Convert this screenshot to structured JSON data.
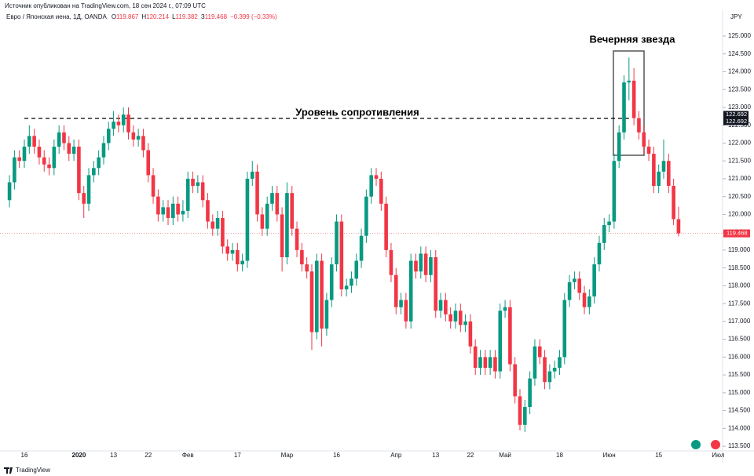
{
  "header": {
    "source": "Источник опубликован на TradingView.com, 18 сен 2024 г., 07:09 UTC",
    "symbol": "Евро / Японская иена, 1Д, OANDA",
    "ohlc_letters": [
      "О",
      "Н",
      "L",
      "З"
    ],
    "change": "−0.399 (−0.33%)",
    "currency": "JPY",
    "brand": "TradingView"
  },
  "chart_data": {
    "type": "candlestick",
    "up_color": "#089981",
    "down_color": "#f23645",
    "ylim": [
      113.37,
      125.62
    ],
    "yticks": [
      {
        "value": 113.5,
        "label": "113.500"
      },
      {
        "value": 114,
        "label": "114.000"
      },
      {
        "value": 114.5,
        "label": "114.500"
      },
      {
        "value": 115,
        "label": "115.000"
      },
      {
        "value": 115.5,
        "label": "115.500"
      },
      {
        "value": 116,
        "label": "116.000"
      },
      {
        "value": 116.5,
        "label": "116.500"
      },
      {
        "value": 117,
        "label": "117.000"
      },
      {
        "value": 117.5,
        "label": "117.500"
      },
      {
        "value": 118,
        "label": "118.000"
      },
      {
        "value": 118.5,
        "label": "118.500"
      },
      {
        "value": 119,
        "label": "119.000"
      },
      {
        "value": 119.5,
        "label": "119.500"
      },
      {
        "value": 120,
        "label": "120.000"
      },
      {
        "value": 120.5,
        "label": "120.500"
      },
      {
        "value": 121,
        "label": "121.000"
      },
      {
        "value": 121.5,
        "label": "121.500"
      },
      {
        "value": 122,
        "label": "122.000"
      },
      {
        "value": 122.5,
        "label": "122.500"
      },
      {
        "value": 123,
        "label": "123.000"
      },
      {
        "value": 123.5,
        "label": "123.500"
      },
      {
        "value": 124,
        "label": "124.000"
      },
      {
        "value": 124.5,
        "label": "124.500"
      },
      {
        "value": 125,
        "label": "125.000"
      }
    ],
    "categories": [
      null,
      null,
      null,
      "16",
      null,
      null,
      null,
      null,
      null,
      null,
      null,
      null,
      null,
      null,
      "2020",
      null,
      null,
      null,
      null,
      null,
      null,
      "13",
      null,
      null,
      null,
      null,
      null,
      null,
      "22",
      null,
      null,
      null,
      null,
      null,
      null,
      null,
      "Фев",
      null,
      null,
      null,
      null,
      null,
      null,
      null,
      null,
      null,
      "17",
      null,
      null,
      null,
      null,
      null,
      null,
      null,
      null,
      null,
      "Мар",
      null,
      null,
      null,
      null,
      null,
      null,
      null,
      null,
      null,
      "16",
      null,
      null,
      null,
      null,
      null,
      null,
      null,
      null,
      null,
      null,
      null,
      "Апр",
      null,
      null,
      null,
      null,
      null,
      null,
      null,
      "13",
      null,
      null,
      null,
      null,
      null,
      null,
      "22",
      null,
      null,
      null,
      null,
      null,
      null,
      "Май",
      null,
      null,
      null,
      null,
      null,
      null,
      null,
      null,
      null,
      null,
      "18",
      null,
      null,
      null,
      null,
      null,
      null,
      null,
      null,
      null,
      "Июн",
      null,
      null,
      null,
      null,
      null,
      null,
      null,
      null,
      null,
      "15",
      null,
      null,
      null,
      null,
      null,
      null,
      null,
      null,
      null,
      null,
      null,
      "Июл"
    ],
    "ohlc": [
      [
        120.4,
        121.1,
        120.2,
        120.9
      ],
      [
        120.9,
        121.8,
        120.7,
        121.6
      ],
      [
        121.6,
        121.8,
        121.3,
        121.5
      ],
      [
        121.5,
        122.1,
        121.3,
        121.9
      ],
      [
        121.9,
        122.5,
        121.7,
        122.2
      ],
      [
        122.2,
        122.4,
        121.7,
        121.9
      ],
      [
        121.9,
        122.1,
        121.4,
        121.6
      ],
      [
        121.6,
        121.8,
        121.2,
        121.4
      ],
      [
        121.4,
        121.6,
        121.1,
        121.3
      ],
      [
        121.3,
        122.1,
        121.1,
        121.9
      ],
      [
        121.9,
        122.5,
        121.7,
        122.3
      ],
      [
        122.3,
        122.5,
        121.8,
        122.0
      ],
      [
        122.0,
        122.2,
        121.5,
        121.7
      ],
      [
        121.7,
        122.1,
        121.5,
        121.9
      ],
      [
        121.9,
        122.1,
        120.4,
        120.6
      ],
      [
        120.6,
        120.8,
        119.9,
        120.3
      ],
      [
        120.3,
        121.3,
        120.1,
        121.1
      ],
      [
        121.1,
        121.5,
        120.9,
        121.3
      ],
      [
        121.3,
        121.8,
        121.1,
        121.6
      ],
      [
        121.6,
        122.2,
        121.4,
        122.0
      ],
      [
        122.0,
        122.6,
        121.8,
        122.4
      ],
      [
        122.4,
        122.9,
        122.2,
        122.6
      ],
      [
        122.6,
        122.8,
        122.3,
        122.5
      ],
      [
        122.5,
        123.0,
        122.3,
        122.8
      ],
      [
        122.8,
        123.0,
        122.1,
        122.3
      ],
      [
        122.3,
        122.5,
        121.9,
        122.1
      ],
      [
        122.1,
        122.4,
        121.9,
        122.2
      ],
      [
        122.2,
        122.4,
        121.6,
        121.8
      ],
      [
        121.8,
        122.0,
        120.9,
        121.1
      ],
      [
        121.1,
        121.3,
        120.3,
        120.5
      ],
      [
        120.5,
        120.7,
        119.8,
        120.0
      ],
      [
        120.0,
        120.4,
        119.8,
        120.2
      ],
      [
        120.2,
        120.4,
        119.7,
        119.9
      ],
      [
        119.9,
        120.5,
        119.7,
        120.3
      ],
      [
        120.3,
        120.5,
        119.8,
        120.0
      ],
      [
        120.0,
        120.4,
        119.8,
        120.1
      ],
      [
        120.1,
        121.2,
        119.9,
        121.0
      ],
      [
        121.0,
        121.2,
        120.6,
        120.8
      ],
      [
        120.8,
        121.1,
        120.6,
        120.9
      ],
      [
        120.9,
        121.1,
        120.2,
        120.4
      ],
      [
        120.4,
        120.6,
        119.6,
        119.8
      ],
      [
        119.8,
        120.0,
        119.4,
        119.6
      ],
      [
        119.6,
        120.1,
        119.4,
        119.9
      ],
      [
        119.9,
        120.1,
        118.9,
        119.1
      ],
      [
        119.1,
        119.3,
        118.7,
        118.9
      ],
      [
        118.9,
        119.2,
        118.7,
        119.0
      ],
      [
        119.0,
        119.2,
        118.4,
        118.6
      ],
      [
        118.6,
        118.9,
        118.4,
        118.7
      ],
      [
        118.7,
        121.2,
        118.5,
        121.0
      ],
      [
        121.0,
        121.5,
        120.8,
        121.2
      ],
      [
        121.2,
        121.4,
        119.8,
        120.0
      ],
      [
        120.0,
        120.2,
        119.4,
        119.6
      ],
      [
        119.6,
        120.5,
        119.4,
        120.3
      ],
      [
        120.3,
        120.8,
        120.1,
        120.6
      ],
      [
        120.6,
        120.8,
        119.8,
        120.0
      ],
      [
        120.0,
        120.2,
        118.4,
        118.8
      ],
      [
        118.8,
        120.9,
        118.6,
        120.6
      ],
      [
        120.6,
        120.8,
        119.4,
        119.6
      ],
      [
        119.6,
        119.8,
        118.8,
        119.0
      ],
      [
        119.0,
        119.2,
        118.4,
        118.6
      ],
      [
        118.6,
        118.8,
        118.2,
        118.4
      ],
      [
        118.4,
        118.6,
        116.2,
        116.7
      ],
      [
        116.7,
        118.9,
        116.5,
        118.7
      ],
      [
        118.7,
        118.9,
        116.3,
        116.8
      ],
      [
        116.8,
        117.8,
        116.6,
        117.6
      ],
      [
        117.6,
        118.8,
        117.4,
        118.6
      ],
      [
        118.6,
        120.0,
        118.4,
        119.8
      ],
      [
        119.8,
        120.0,
        117.7,
        117.9
      ],
      [
        117.9,
        118.2,
        117.7,
        118.0
      ],
      [
        118.0,
        118.4,
        117.8,
        118.2
      ],
      [
        118.2,
        118.9,
        118.0,
        118.7
      ],
      [
        118.7,
        119.6,
        118.5,
        119.4
      ],
      [
        119.4,
        120.7,
        119.2,
        120.5
      ],
      [
        120.5,
        121.3,
        120.3,
        121.1
      ],
      [
        121.1,
        121.3,
        120.8,
        121.0
      ],
      [
        121.0,
        121.2,
        120.1,
        120.3
      ],
      [
        120.3,
        120.5,
        118.8,
        119.0
      ],
      [
        119.0,
        119.2,
        118.1,
        118.3
      ],
      [
        118.3,
        118.5,
        117.2,
        117.4
      ],
      [
        117.4,
        117.8,
        117.2,
        117.6
      ],
      [
        117.6,
        117.8,
        116.8,
        117.0
      ],
      [
        117.0,
        118.9,
        116.8,
        118.7
      ],
      [
        118.7,
        118.9,
        118.2,
        118.4
      ],
      [
        118.4,
        119.1,
        118.2,
        118.9
      ],
      [
        118.9,
        119.1,
        118.1,
        118.3
      ],
      [
        118.3,
        119.0,
        118.1,
        118.8
      ],
      [
        118.8,
        119.0,
        117.1,
        117.3
      ],
      [
        117.3,
        117.8,
        117.1,
        117.6
      ],
      [
        117.6,
        117.8,
        117.0,
        117.2
      ],
      [
        117.2,
        117.4,
        116.8,
        117.0
      ],
      [
        117.0,
        117.5,
        116.8,
        117.3
      ],
      [
        117.3,
        117.5,
        116.7,
        116.9
      ],
      [
        116.9,
        117.2,
        116.7,
        117.0
      ],
      [
        117.0,
        117.2,
        116.1,
        116.3
      ],
      [
        116.3,
        116.5,
        115.5,
        115.7
      ],
      [
        115.7,
        116.2,
        115.5,
        116.0
      ],
      [
        116.0,
        116.2,
        115.5,
        115.7
      ],
      [
        115.7,
        116.2,
        115.5,
        116.0
      ],
      [
        116.0,
        116.2,
        115.4,
        115.6
      ],
      [
        115.6,
        117.5,
        115.4,
        117.3
      ],
      [
        117.3,
        117.6,
        117.1,
        117.4
      ],
      [
        117.4,
        117.6,
        115.6,
        115.8
      ],
      [
        115.8,
        116.0,
        114.7,
        114.9
      ],
      [
        114.9,
        115.1,
        113.95,
        114.1
      ],
      [
        114.1,
        114.8,
        113.9,
        114.6
      ],
      [
        114.6,
        115.6,
        114.4,
        115.4
      ],
      [
        115.4,
        116.5,
        115.2,
        116.3
      ],
      [
        116.3,
        116.5,
        115.8,
        116.0
      ],
      [
        116.0,
        116.2,
        115.1,
        115.3
      ],
      [
        115.3,
        115.8,
        115.1,
        115.6
      ],
      [
        115.6,
        115.9,
        115.4,
        115.7
      ],
      [
        115.7,
        116.2,
        115.5,
        116.0
      ],
      [
        116.0,
        117.8,
        115.8,
        117.6
      ],
      [
        117.6,
        118.3,
        117.4,
        118.1
      ],
      [
        118.1,
        118.4,
        117.9,
        118.2
      ],
      [
        118.2,
        118.4,
        117.6,
        117.8
      ],
      [
        117.8,
        118.0,
        117.2,
        117.4
      ],
      [
        117.4,
        117.9,
        117.2,
        117.7
      ],
      [
        117.7,
        118.8,
        117.5,
        118.6
      ],
      [
        118.6,
        119.4,
        118.4,
        119.2
      ],
      [
        119.2,
        119.9,
        119.0,
        119.7
      ],
      [
        119.7,
        120.0,
        119.5,
        119.8
      ],
      [
        119.8,
        121.7,
        119.6,
        121.5
      ],
      [
        121.5,
        122.5,
        121.3,
        122.3
      ],
      [
        122.3,
        123.9,
        122.1,
        123.7
      ],
      [
        123.7,
        124.4,
        123.2,
        123.75
      ],
      [
        123.75,
        124.1,
        122.5,
        122.7
      ],
      [
        122.7,
        122.9,
        122.1,
        122.3
      ],
      [
        122.3,
        122.5,
        121.7,
        121.9
      ],
      [
        121.9,
        122.1,
        121.5,
        121.7
      ],
      [
        121.7,
        121.9,
        120.6,
        120.8
      ],
      [
        120.8,
        121.4,
        120.6,
        121.2
      ],
      [
        121.2,
        122.1,
        121.0,
        121.5
      ],
      [
        121.5,
        121.7,
        120.6,
        120.8
      ],
      [
        120.8,
        121.0,
        119.7,
        119.867
      ],
      [
        119.867,
        120.214,
        119.382,
        119.468
      ],
      null,
      null,
      null,
      null,
      null,
      null,
      null,
      null
    ],
    "resistance": 122.692,
    "annotations": [
      "Уровень сопротивления",
      "Вечерняя звезда"
    ]
  }
}
